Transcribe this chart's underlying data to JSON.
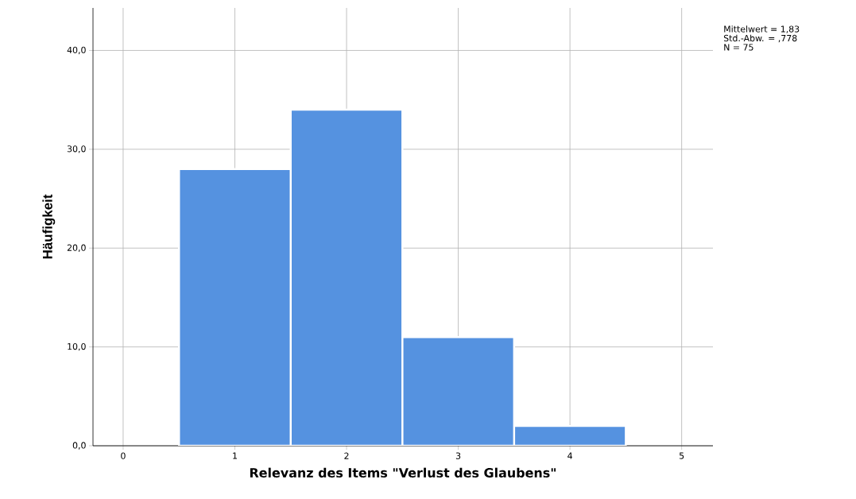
{
  "chart_data": {
    "type": "histogram",
    "xlabel": "Relevanz des Items \"Verlust des Glaubens\"",
    "ylabel": "Häufigkeit",
    "bins": [
      0.5,
      1.5,
      2.5,
      3.5,
      4.5
    ],
    "values": [
      28,
      34,
      11,
      2
    ],
    "color": "#5592e0",
    "xlim": [
      -0.27,
      5.28
    ],
    "xticks": [
      0,
      1,
      2,
      3,
      4,
      5
    ],
    "ylim": [
      0,
      44.3
    ],
    "yticks": [
      {
        "value": 0,
        "label": "0,0"
      },
      {
        "value": 10,
        "label": "10,0"
      },
      {
        "value": 20,
        "label": "20,0"
      },
      {
        "value": 30,
        "label": "30,0"
      },
      {
        "value": 40,
        "label": "40,0"
      }
    ],
    "grid": true,
    "annotations": [
      "Mittelwert = 1,83",
      "Std.-Abw. = ,778",
      "N = 75"
    ]
  }
}
